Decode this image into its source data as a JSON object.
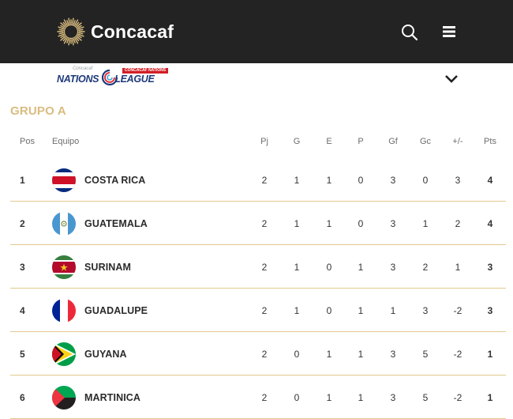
{
  "header": {
    "brand": "Concacaf",
    "brand_color": "#d9bc7f",
    "bar_color": "#232323",
    "search_icon": "search-icon",
    "menu_icon": "hamburger-menu-icon"
  },
  "competition": {
    "logo_small": "Concacaf",
    "logo_tag": "CONCACAF NATIONS",
    "logo_main_left": "NATIONS",
    "logo_main_right": "LEAGUE",
    "expand_icon": "chevron-down-icon"
  },
  "group": {
    "title": "GRUPO A",
    "title_color": "#d9bc7f"
  },
  "table": {
    "headers": {
      "pos": "Pos",
      "team": "Equipo",
      "pj": "Pj",
      "g": "G",
      "e": "E",
      "p": "P",
      "gf": "Gf",
      "gc": "Gc",
      "diff": "+/-",
      "pts": "Pts"
    },
    "rows": [
      {
        "pos": "1",
        "team": "COSTA RICA",
        "flag": "costa-rica",
        "pj": "2",
        "g": "1",
        "e": "1",
        "p": "0",
        "gf": "3",
        "gc": "0",
        "diff": "3",
        "pts": "4"
      },
      {
        "pos": "2",
        "team": "GUATEMALA",
        "flag": "guatemala",
        "pj": "2",
        "g": "1",
        "e": "1",
        "p": "0",
        "gf": "3",
        "gc": "1",
        "diff": "2",
        "pts": "4"
      },
      {
        "pos": "3",
        "team": "SURINAM",
        "flag": "suriname",
        "pj": "2",
        "g": "1",
        "e": "0",
        "p": "1",
        "gf": "3",
        "gc": "2",
        "diff": "1",
        "pts": "3"
      },
      {
        "pos": "4",
        "team": "GUADALUPE",
        "flag": "guadeloupe",
        "pj": "2",
        "g": "1",
        "e": "0",
        "p": "1",
        "gf": "1",
        "gc": "3",
        "diff": "-2",
        "pts": "3"
      },
      {
        "pos": "5",
        "team": "GUYANA",
        "flag": "guyana",
        "pj": "2",
        "g": "0",
        "e": "1",
        "p": "1",
        "gf": "3",
        "gc": "5",
        "diff": "-2",
        "pts": "1"
      },
      {
        "pos": "6",
        "team": "MARTINICA",
        "flag": "martinique",
        "pj": "2",
        "g": "0",
        "e": "1",
        "p": "1",
        "gf": "3",
        "gc": "5",
        "diff": "-2",
        "pts": "1"
      }
    ]
  }
}
